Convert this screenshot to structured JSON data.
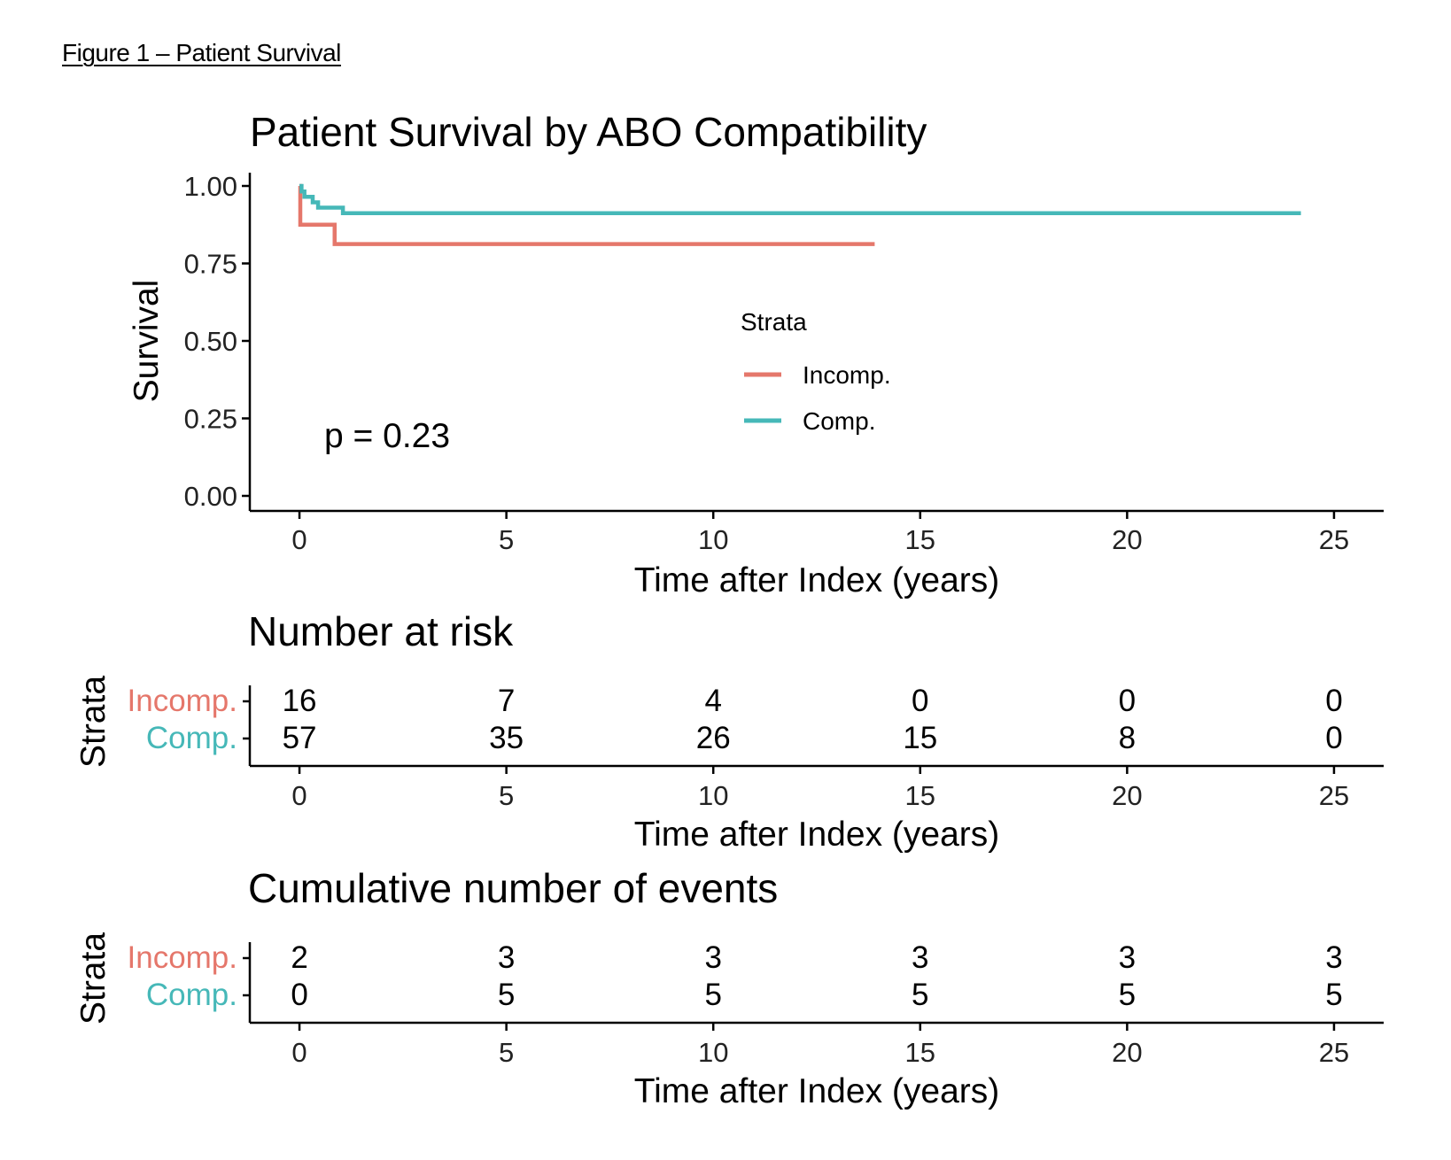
{
  "figure_caption": "Figure 1 – Patient Survival",
  "chart_data": [
    {
      "type": "line",
      "title": "Patient Survival by ABO Compatibility",
      "xlabel": "Time after Index (years)",
      "ylabel": "Survival",
      "xlim": [
        -1.2,
        26.2
      ],
      "ylim": [
        0,
        1
      ],
      "x_ticks": [
        "0",
        "5",
        "10",
        "15",
        "20",
        "25"
      ],
      "y_ticks": [
        "0.00",
        "0.25",
        "0.50",
        "0.75",
        "1.00"
      ],
      "annotation": "p = 0.23",
      "legend": {
        "title": "Strata",
        "position": "right-center"
      },
      "grid": false,
      "series": [
        {
          "name": "Incomp.",
          "color": "#E5776B",
          "step": true,
          "x": [
            0,
            0.02,
            0.8,
            0.85,
            13.9
          ],
          "y": [
            1.0,
            0.875,
            0.875,
            0.8125,
            0.8125
          ]
        },
        {
          "name": "Comp.",
          "color": "#46B8B8",
          "step": true,
          "x": [
            0,
            0.05,
            0.12,
            0.25,
            0.32,
            0.45,
            1.0,
            1.05,
            24.2
          ],
          "y": [
            1.0,
            0.982,
            0.965,
            0.965,
            0.947,
            0.93,
            0.93,
            0.912,
            0.912
          ]
        }
      ]
    },
    {
      "type": "table",
      "title": "Number at risk",
      "ylabel": "Strata",
      "xlabel": "Time after Index (years)",
      "x_ticks": [
        "0",
        "5",
        "10",
        "15",
        "20",
        "25"
      ],
      "rows": [
        {
          "name": "Incomp.",
          "color": "#E5776B",
          "values": [
            "16",
            "7",
            "4",
            "0",
            "0",
            "0"
          ]
        },
        {
          "name": "Comp.",
          "color": "#46B8B8",
          "values": [
            "57",
            "35",
            "26",
            "15",
            "8",
            "0"
          ]
        }
      ]
    },
    {
      "type": "table",
      "title": "Cumulative number of events",
      "ylabel": "Strata",
      "xlabel": "Time after Index (years)",
      "x_ticks": [
        "0",
        "5",
        "10",
        "15",
        "20",
        "25"
      ],
      "rows": [
        {
          "name": "Incomp.",
          "color": "#E5776B",
          "values": [
            "2",
            "3",
            "3",
            "3",
            "3",
            "3"
          ]
        },
        {
          "name": "Comp.",
          "color": "#46B8B8",
          "values": [
            "0",
            "5",
            "5",
            "5",
            "5",
            "5"
          ]
        }
      ]
    }
  ]
}
